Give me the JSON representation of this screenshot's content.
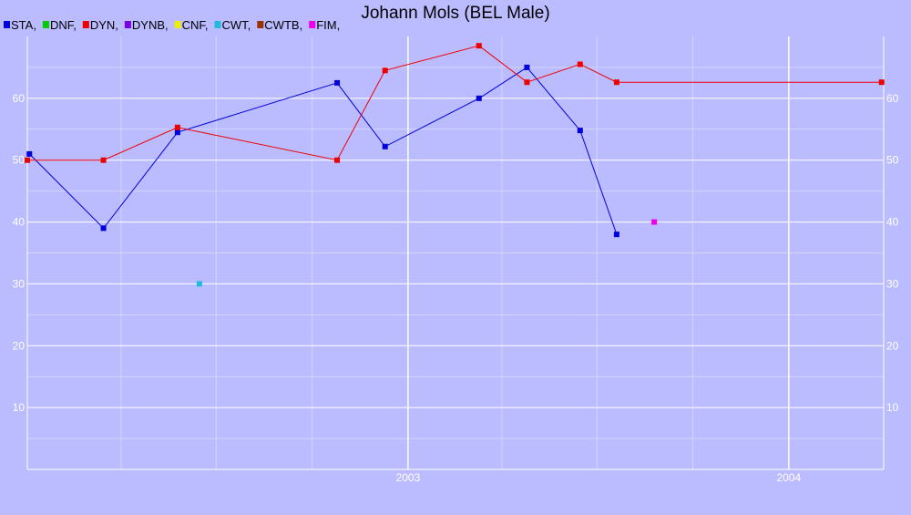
{
  "chart_data": {
    "type": "line",
    "title": "Johann Mols (BEL Male)",
    "xlabel": "",
    "ylabel": "",
    "x_tick_labels": [
      {
        "label": "2003",
        "date": "2003-01-01"
      },
      {
        "label": "2004",
        "date": "2004-01-01"
      }
    ],
    "xlim": [
      "2002-01-01",
      "2004-04-01"
    ],
    "ylim": [
      0,
      70
    ],
    "y_ticks": [
      10,
      20,
      30,
      40,
      50,
      60
    ],
    "grid": true,
    "legend_position": "top-left",
    "series": [
      {
        "name": "STA",
        "color": "#0000dd",
        "points": [
          [
            "2002-01-03",
            51
          ],
          [
            "2002-03-15",
            39
          ],
          [
            "2002-05-25",
            54.5
          ],
          [
            "2002-10-25",
            62.5
          ],
          [
            "2002-12-10",
            52.2
          ],
          [
            "2003-03-10",
            60
          ],
          [
            "2003-04-25",
            65
          ],
          [
            "2003-06-15",
            54.8
          ],
          [
            "2003-07-20",
            38
          ]
        ]
      },
      {
        "name": "DNF",
        "color": "#00cc00",
        "points": []
      },
      {
        "name": "DYN",
        "color": "#ee0000",
        "points": [
          [
            "2002-01-01",
            50
          ],
          [
            "2002-03-15",
            50
          ],
          [
            "2002-05-25",
            55.3
          ],
          [
            "2002-10-25",
            50
          ],
          [
            "2002-12-10",
            64.5
          ],
          [
            "2003-03-10",
            68.5
          ],
          [
            "2003-04-25",
            62.6
          ],
          [
            "2003-06-15",
            65.5
          ],
          [
            "2003-07-20",
            62.6
          ],
          [
            "2004-03-30",
            62.6
          ]
        ]
      },
      {
        "name": "DYNB",
        "color": "#7a00e6",
        "points": []
      },
      {
        "name": "CNF",
        "color": "#eeee00",
        "points": []
      },
      {
        "name": "CWT",
        "color": "#22bbdd",
        "points": [
          [
            "2002-06-15",
            30
          ]
        ]
      },
      {
        "name": "CWTB",
        "color": "#993300",
        "points": []
      },
      {
        "name": "FIM",
        "color": "#ee00ee",
        "points": [
          [
            "2003-08-25",
            40
          ]
        ]
      }
    ]
  }
}
